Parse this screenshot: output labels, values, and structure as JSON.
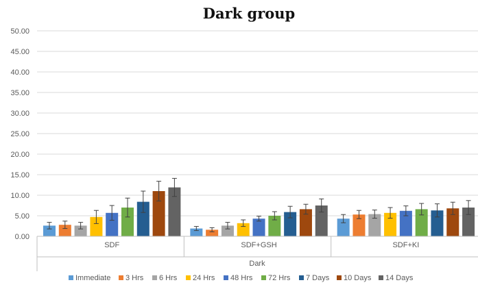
{
  "chart_data": {
    "type": "bar",
    "title": "Dark group",
    "group_label": "Dark",
    "categories": [
      "SDF",
      "SDF+GSH",
      "SDF+KI"
    ],
    "ylim": [
      0,
      50
    ],
    "yticks": [
      "0.00",
      "5.00",
      "10.00",
      "15.00",
      "20.00",
      "25.00",
      "30.00",
      "35.00",
      "40.00",
      "45.00",
      "50.00"
    ],
    "grid": true,
    "legend_position": "bottom",
    "series": [
      {
        "name": "Immediate",
        "color": "#5B9BD5",
        "values": [
          2.6,
          1.9,
          4.3
        ],
        "errors": [
          0.8,
          0.5,
          1.0
        ]
      },
      {
        "name": "3 Hrs",
        "color": "#ED7D31",
        "values": [
          2.8,
          1.6,
          5.3
        ],
        "errors": [
          0.9,
          0.5,
          1.0
        ]
      },
      {
        "name": "6 Hrs",
        "color": "#A5A5A5",
        "values": [
          2.6,
          2.6,
          5.4
        ],
        "errors": [
          0.8,
          0.8,
          1.0
        ]
      },
      {
        "name": "24 Hrs",
        "color": "#FFC000",
        "values": [
          4.7,
          3.2,
          5.7
        ],
        "errors": [
          1.6,
          0.8,
          1.3
        ]
      },
      {
        "name": "48 Hrs",
        "color": "#4472C4",
        "values": [
          5.7,
          4.3,
          6.2
        ],
        "errors": [
          1.8,
          0.6,
          1.2
        ]
      },
      {
        "name": "72 Hrs",
        "color": "#70AD47",
        "values": [
          7.0,
          5.0,
          6.6
        ],
        "errors": [
          2.3,
          1.0,
          1.4
        ]
      },
      {
        "name": "7 Days",
        "color": "#255E91",
        "values": [
          8.4,
          5.9,
          6.3
        ],
        "errors": [
          2.6,
          1.4,
          1.6
        ]
      },
      {
        "name": "10 Days",
        "color": "#9E480E",
        "values": [
          11.0,
          6.6,
          6.8
        ],
        "errors": [
          2.4,
          1.2,
          1.5
        ]
      },
      {
        "name": "14 Days",
        "color": "#636363",
        "values": [
          11.9,
          7.5,
          7.0
        ],
        "errors": [
          2.2,
          1.6,
          1.7
        ]
      }
    ]
  }
}
